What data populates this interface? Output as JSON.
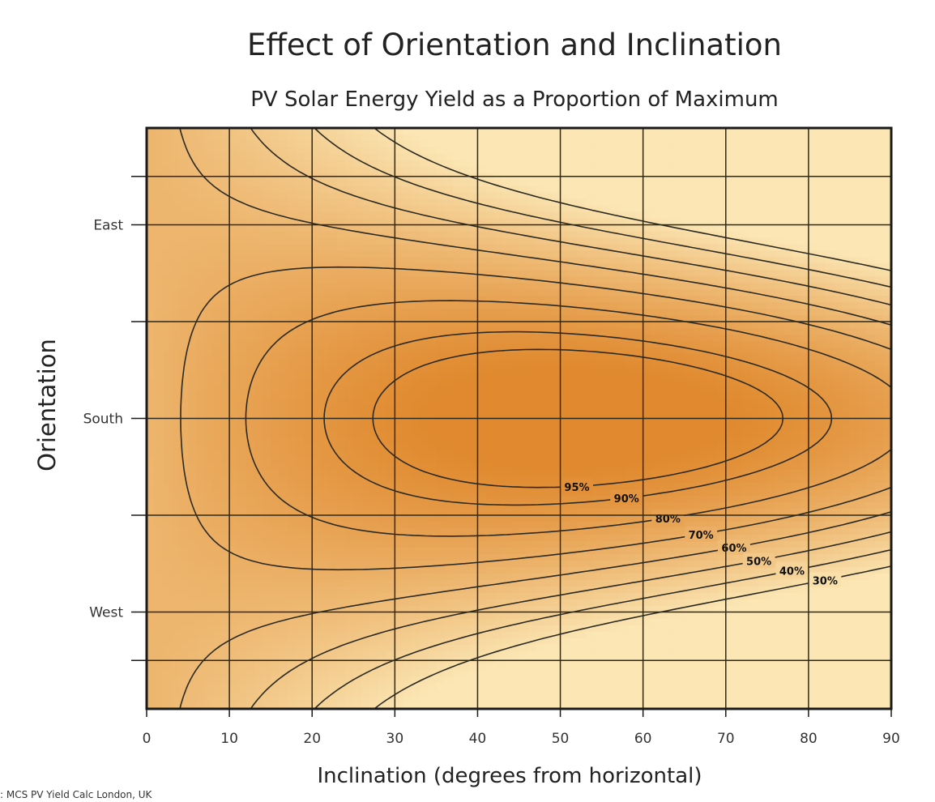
{
  "chart_data": {
    "type": "heatmap",
    "title": "Effect of Orientation and Inclination",
    "subtitle": "PV Solar Energy Yield as a Proportion of Maximum",
    "xlabel": "Inclination (degrees from horizontal)",
    "ylabel": "Orientation",
    "xlim": [
      0,
      90
    ],
    "x_ticks": [
      0,
      10,
      20,
      30,
      40,
      50,
      60,
      70,
      80,
      90
    ],
    "x_tick_labels": [
      "0",
      "10",
      "20",
      "30",
      "40",
      "50",
      "60",
      "70",
      "80",
      "90"
    ],
    "y_scale": "azimuth (degrees from north)",
    "ylim": [
      45,
      315
    ],
    "y_ticks": [
      67.5,
      90,
      135,
      180,
      225,
      270,
      292.5
    ],
    "y_tick_labels": [
      "",
      "East",
      "",
      "South",
      "",
      "West",
      ""
    ],
    "grid": true,
    "contour_levels": [
      0.95,
      0.9,
      0.8,
      0.7,
      0.6,
      0.5,
      0.4,
      0.3
    ],
    "contour_labels": [
      "95%",
      "90%",
      "80%",
      "70%",
      "60%",
      "50%",
      "40%",
      "30%"
    ],
    "colors": {
      "high": "#e0892e",
      "low": "#fbe6b4",
      "line": "#2a2a22"
    }
  },
  "source_note": ": MCS PV Yield Calc London, UK"
}
